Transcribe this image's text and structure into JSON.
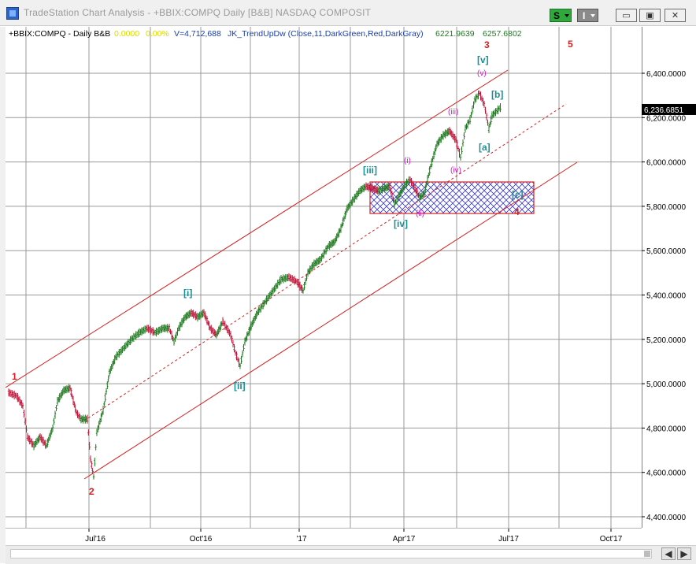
{
  "window": {
    "title": "TradeStation Chart Analysis - +BBIX:COMPQ Daily [B&B] NASDAQ COMPOSIT",
    "s_button": "S",
    "i_button": "I",
    "min_glyph": "▭",
    "max_glyph": "▣",
    "close_glyph": "✕"
  },
  "header": {
    "symbol": "+BBIX:COMPQ - Daily  B&B",
    "val1": "0.0000",
    "val2": "0.00%",
    "volume": "V=4,712,688",
    "indicator": "JK_TrendUpDw (Close,11,DarkGreen,Red,DarkGray)",
    "ind_val1": "6221.9639",
    "ind_val2": "6257.6802"
  },
  "price_axis": {
    "labels": [
      "6,400.0000",
      "6,200.0000",
      "6,000.0000",
      "5,800.0000",
      "5,600.0000",
      "5,400.0000",
      "5,200.0000",
      "5,000.0000",
      "4,800.0000",
      "4,600.0000",
      "4,400.0000"
    ],
    "current_price": "6,236.6851"
  },
  "time_axis": {
    "labels": [
      "Jul'16",
      "Oct'16",
      "'17",
      "Apr'17",
      "Jul'17",
      "Oct'17"
    ]
  },
  "wave_labels": {
    "red": [
      {
        "text": "1"
      },
      {
        "text": "2"
      },
      {
        "text": "3"
      },
      {
        "text": "4"
      },
      {
        "text": "5"
      }
    ],
    "teal": [
      {
        "text": "[i]"
      },
      {
        "text": "[ii]"
      },
      {
        "text": "[iii]"
      },
      {
        "text": "[iv]"
      },
      {
        "text": "[v]"
      },
      {
        "text": "[a]"
      },
      {
        "text": "[b]"
      },
      {
        "text": "[c]"
      }
    ],
    "magenta": [
      {
        "text": "(i)"
      },
      {
        "text": "(ii)"
      },
      {
        "text": "(iii)"
      },
      {
        "text": "(iv)"
      },
      {
        "text": "(v)"
      }
    ]
  },
  "colors": {
    "up_bar": "#1f7a1f",
    "down_bar": "#c0153b",
    "channel": "#d42020",
    "teal": "#1a8f96",
    "magenta": "#d31cc8",
    "zone": "#3a3ac8",
    "price_tag_bg": "#000000"
  },
  "scroll": {
    "left_glyph": "◀",
    "right_glyph": "▶"
  }
}
